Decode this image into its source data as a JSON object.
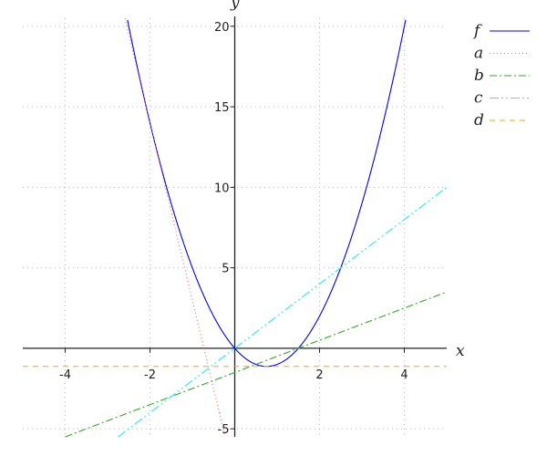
{
  "chart_data": {
    "type": "line",
    "xlabel": "x",
    "ylabel": "y",
    "xlim": [
      -5,
      5
    ],
    "ylim": [
      -5.5,
      20.5
    ],
    "xticks": [
      -4,
      -2,
      2,
      4
    ],
    "yticks": [
      -5,
      5,
      10,
      15,
      20
    ],
    "grid": true,
    "legend_position": "top-right",
    "series": [
      {
        "name": "f",
        "expression": "2x^2 - 3x",
        "coefficients": [
          2,
          -3,
          0
        ],
        "color": "#0000ff",
        "dash": "solid"
      },
      {
        "name": "a",
        "expression": "-11x - 8",
        "coefficients": [
          0,
          -11,
          -8
        ],
        "color": "#ff6666",
        "dash": "dotted"
      },
      {
        "name": "b",
        "expression": "x - 1.5",
        "coefficients": [
          0,
          1,
          -1.5
        ],
        "color": "#33aa22",
        "dash": "dash-dot",
        "x_start": -4
      },
      {
        "name": "c",
        "expression": "2x",
        "coefficients": [
          0,
          2,
          0
        ],
        "color": "#22eeee",
        "dash": "dash-dot-dot"
      },
      {
        "name": "d",
        "expression": "-1.125",
        "coefficients": [
          0,
          0,
          -1.125
        ],
        "color": "#ffa500",
        "dash": "dashed"
      }
    ]
  }
}
